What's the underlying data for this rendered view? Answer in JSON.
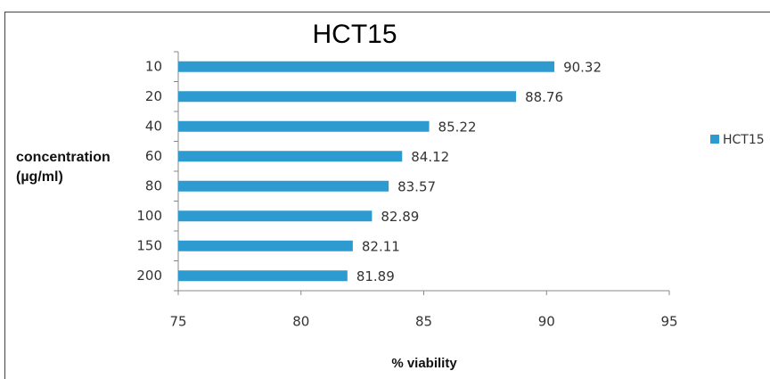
{
  "chart_data": {
    "type": "bar",
    "orientation": "horizontal",
    "title": "HCT15",
    "x_label": "% viability",
    "y_label": "concentration (µg/ml)",
    "categories": [
      "10",
      "20",
      "40",
      "60",
      "80",
      "100",
      "150",
      "200"
    ],
    "series": [
      {
        "name": "HCT15",
        "color": "#2e9bd0",
        "values": [
          90.32,
          88.76,
          85.22,
          84.12,
          83.57,
          82.89,
          82.11,
          81.89
        ]
      }
    ],
    "xlim": [
      75,
      95
    ],
    "xticks": [
      75,
      80,
      85,
      90,
      95
    ],
    "grid": false,
    "legend": "right",
    "data_labels": true
  }
}
